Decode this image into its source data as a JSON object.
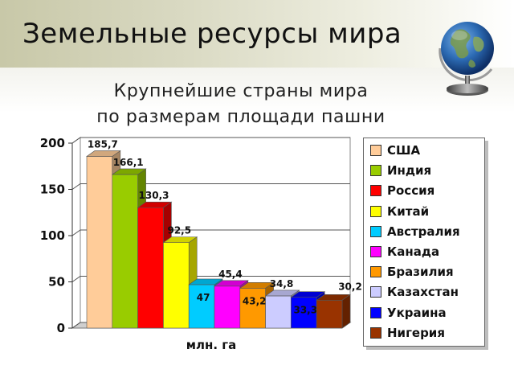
{
  "slide": {
    "title": "Земельные ресурсы мира",
    "subtitle_line1": "Крупнейшие страны мира",
    "subtitle_line2": "по размерам площади пашни",
    "globe_icon": "globe-icon"
  },
  "chart_data": {
    "type": "bar",
    "title": "",
    "xlabel": "млн. га",
    "ylabel": "",
    "ylim": [
      0,
      200
    ],
    "yticks": [
      0,
      50,
      100,
      150,
      200
    ],
    "style": "3d-column",
    "legend_position": "right",
    "grid": true,
    "categories": [
      "США",
      "Индия",
      "Россия",
      "Китай",
      "Австралия",
      "Канада",
      "Бразилия",
      "Казахстан",
      "Украина",
      "Нигерия"
    ],
    "values": [
      185.7,
      166.1,
      130.3,
      92.5,
      47,
      45.4,
      43.2,
      34.8,
      33.3,
      30.2
    ],
    "value_labels": [
      "185,7",
      "166,1",
      "130,3",
      "92,5",
      "47",
      "45,4",
      "43,2",
      "34,8",
      "33,3",
      "30,2"
    ],
    "colors": [
      "#ffcc99",
      "#99cc00",
      "#ff0000",
      "#ffff00",
      "#00ccff",
      "#ff00ff",
      "#ff9900",
      "#ccccff",
      "#0000ff",
      "#993300"
    ]
  }
}
